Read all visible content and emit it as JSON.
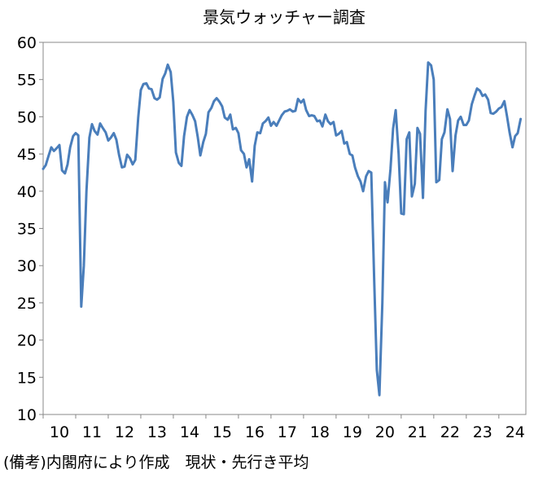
{
  "chart_data": {
    "type": "line",
    "title": "景気ウォッチャー調査",
    "note": "(備考)内閣府により作成　現状・先行き平均",
    "ylim": [
      10,
      60
    ],
    "yticks": [
      "10",
      "15",
      "20",
      "25",
      "30",
      "35",
      "40",
      "45",
      "50",
      "55",
      "60"
    ],
    "xticks": [
      "10",
      "11",
      "12",
      "13",
      "14",
      "15",
      "16",
      "17",
      "18",
      "19",
      "20",
      "21",
      "22",
      "23",
      "24"
    ],
    "xlim": [
      2010.0,
      2024.83
    ],
    "grid": false,
    "line_color": "#4a7ebb",
    "series": [
      {
        "x": [
          2010.0,
          2010.08,
          2010.17,
          2010.25,
          2010.33,
          2010.42,
          2010.5,
          2010.58,
          2010.67,
          2010.75,
          2010.83,
          2010.92,
          2011.0,
          2011.08,
          2011.17,
          2011.25,
          2011.33,
          2011.42,
          2011.5,
          2011.58,
          2011.67,
          2011.75,
          2011.83,
          2011.92,
          2012.0,
          2012.08,
          2012.17,
          2012.25,
          2012.33,
          2012.42,
          2012.5,
          2012.58,
          2012.67,
          2012.75,
          2012.83,
          2012.92,
          2013.0,
          2013.08,
          2013.17,
          2013.25,
          2013.33,
          2013.42,
          2013.5,
          2013.58,
          2013.67,
          2013.75,
          2013.83,
          2013.92,
          2014.0,
          2014.08,
          2014.17,
          2014.25,
          2014.33,
          2014.42,
          2014.5,
          2014.58,
          2014.67,
          2014.75,
          2014.83,
          2014.92,
          2015.0,
          2015.08,
          2015.17,
          2015.25,
          2015.33,
          2015.42,
          2015.5,
          2015.58,
          2015.67,
          2015.75,
          2015.83,
          2015.92,
          2016.0,
          2016.08,
          2016.17,
          2016.25,
          2016.33,
          2016.42,
          2016.5,
          2016.58,
          2016.67,
          2016.75,
          2016.83,
          2016.92,
          2017.0,
          2017.08,
          2017.17,
          2017.25,
          2017.33,
          2017.42,
          2017.5,
          2017.58,
          2017.67,
          2017.75,
          2017.83,
          2017.92,
          2018.0,
          2018.08,
          2018.17,
          2018.25,
          2018.33,
          2018.42,
          2018.5,
          2018.58,
          2018.67,
          2018.75,
          2018.83,
          2018.92,
          2019.0,
          2019.08,
          2019.17,
          2019.25,
          2019.33,
          2019.42,
          2019.5,
          2019.58,
          2019.67,
          2019.75,
          2019.83,
          2019.92,
          2020.0,
          2020.08,
          2020.17,
          2020.25,
          2020.33,
          2020.42,
          2020.5,
          2020.58,
          2020.67,
          2020.75,
          2020.83,
          2020.92,
          2021.0,
          2021.08,
          2021.17,
          2021.25,
          2021.33,
          2021.42,
          2021.5,
          2021.58,
          2021.67,
          2021.75,
          2021.83,
          2021.92,
          2022.0,
          2022.08,
          2022.17,
          2022.25,
          2022.33,
          2022.42,
          2022.5,
          2022.58,
          2022.67,
          2022.75,
          2022.83,
          2022.92,
          2023.0,
          2023.08,
          2023.17,
          2023.25,
          2023.33,
          2023.42,
          2023.5,
          2023.58,
          2023.67,
          2023.75,
          2023.83,
          2023.92,
          2024.0,
          2024.08,
          2024.17,
          2024.25,
          2024.33,
          2024.42,
          2024.5,
          2024.58,
          2024.67
        ],
        "y": [
          43.0,
          43.5,
          44.8,
          45.9,
          45.4,
          45.8,
          46.2,
          42.8,
          42.4,
          43.6,
          45.9,
          47.4,
          47.8,
          47.5,
          24.5,
          30.0,
          40.0,
          47.2,
          49.0,
          48.1,
          47.6,
          49.1,
          48.5,
          47.9,
          46.8,
          47.2,
          47.8,
          46.9,
          44.9,
          43.2,
          43.3,
          44.9,
          44.4,
          43.6,
          44.2,
          49.9,
          53.6,
          54.4,
          54.5,
          53.8,
          53.7,
          52.5,
          52.3,
          52.6,
          55.1,
          55.8,
          57.0,
          56.0,
          52.0,
          45.2,
          43.8,
          43.4,
          47.4,
          50.0,
          50.9,
          50.3,
          49.4,
          47.3,
          44.8,
          46.6,
          47.7,
          50.6,
          51.2,
          52.1,
          52.5,
          52.0,
          51.4,
          49.9,
          49.6,
          50.3,
          48.3,
          48.5,
          47.8,
          45.5,
          45.0,
          43.2,
          44.3,
          41.3,
          46.1,
          47.9,
          47.8,
          49.1,
          49.4,
          49.9,
          48.8,
          49.3,
          48.8,
          49.5,
          50.2,
          50.7,
          50.8,
          51.0,
          50.7,
          50.8,
          52.4,
          51.9,
          52.3,
          50.9,
          50.1,
          50.2,
          50.1,
          49.4,
          49.5,
          48.7,
          50.3,
          49.4,
          49.0,
          49.3,
          47.5,
          47.7,
          48.1,
          46.4,
          46.6,
          45.0,
          44.8,
          43.2,
          42.0,
          41.3,
          40.0,
          42.0,
          42.7,
          42.5,
          28.0,
          16.0,
          12.6,
          25.0,
          41.2,
          38.5,
          43.0,
          48.4,
          50.9,
          45.0,
          37.0,
          36.9,
          47.0,
          47.9,
          39.3,
          41.0,
          48.5,
          47.7,
          39.1,
          50.8,
          57.3,
          56.9,
          55.0,
          41.2,
          41.5,
          47.0,
          47.9,
          51.0,
          49.7,
          42.7,
          47.5,
          49.5,
          50.0,
          48.9,
          48.9,
          49.5,
          51.7,
          52.8,
          53.8,
          53.5,
          52.8,
          53.0,
          52.3,
          50.5,
          50.4,
          50.7,
          51.1,
          51.3,
          52.1,
          50.1,
          47.9,
          45.9,
          47.4,
          47.8,
          49.7
        ]
      }
    ]
  }
}
